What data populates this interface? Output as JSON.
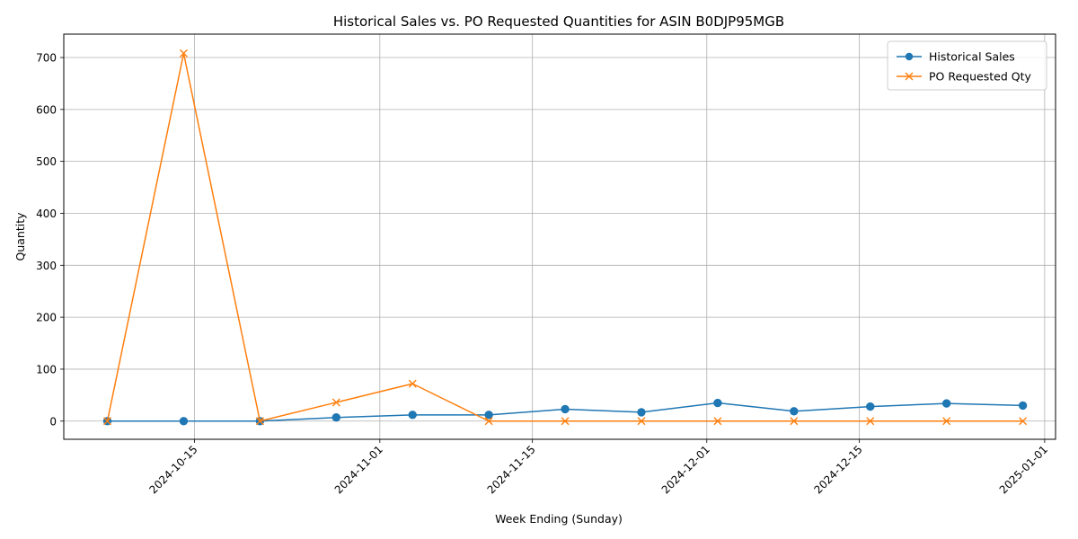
{
  "chart_data": {
    "type": "line",
    "title": "Historical Sales vs. PO Requested Quantities for ASIN B0DJP95MGB",
    "xlabel": "Week Ending (Sunday)",
    "ylabel": "Quantity",
    "x_type": "date",
    "x": [
      "2024-10-07",
      "2024-10-14",
      "2024-10-21",
      "2024-10-28",
      "2024-11-04",
      "2024-11-11",
      "2024-11-18",
      "2024-11-25",
      "2024-12-02",
      "2024-12-09",
      "2024-12-16",
      "2024-12-23",
      "2024-12-30"
    ],
    "x_ticks": [
      "2024-10-15",
      "2024-11-01",
      "2024-11-15",
      "2024-12-01",
      "2024-12-15",
      "2025-01-01"
    ],
    "xlim": [
      "2024-10-03",
      "2025-01-02"
    ],
    "y_ticks": [
      0,
      100,
      200,
      300,
      400,
      500,
      600,
      700
    ],
    "ylim": [
      -35,
      745
    ],
    "grid": true,
    "legend_position": "top-right",
    "series": [
      {
        "name": "Historical Sales",
        "color": "#1f77b4",
        "marker": "circle",
        "values": [
          0,
          0,
          0,
          7,
          12,
          12,
          23,
          17,
          35,
          19,
          28,
          34,
          30
        ]
      },
      {
        "name": "PO Requested Qty",
        "color": "#ff7f0e",
        "marker": "x",
        "values": [
          0,
          708,
          0,
          36,
          72,
          0,
          0,
          0,
          0,
          0,
          0,
          0,
          0
        ]
      }
    ]
  }
}
